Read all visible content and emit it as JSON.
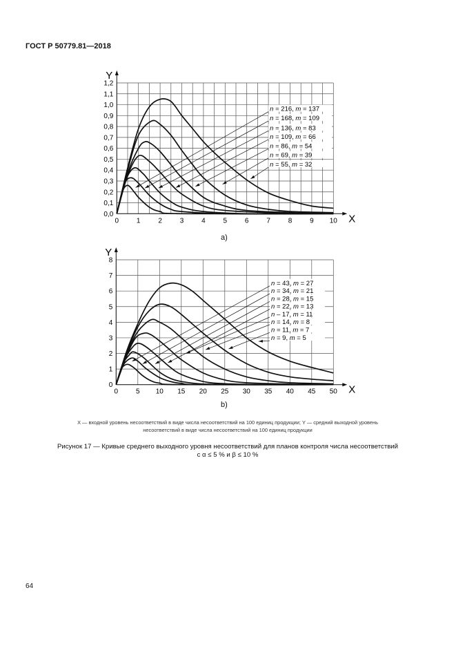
{
  "header": {
    "standard": "ГОСТ Р 50779.81—2018"
  },
  "figure": {
    "legend_line1": "X — входной уровень несоответствий в виде числа несоответствий на 100 единиц продукции; Y — средний выходной уровень",
    "legend_line2": "несоответствий в виде числа несоответствий на 100 единиц продукции",
    "title_line1": "Рисунок 17 — Кривые среднего выходного уровня несоответствий для планов контроля числа несоответствий",
    "title_line2": "с α ≤ 5 % и β ≤ 10 %"
  },
  "page_number": "64",
  "chart_data": [
    {
      "type": "line",
      "sublabel": "a)",
      "xlabel": "X",
      "ylabel": "Y",
      "xlim": [
        0,
        10
      ],
      "ylim": [
        0,
        1.2
      ],
      "xticks": [
        "0",
        "1",
        "2",
        "3",
        "4",
        "5",
        "6",
        "7",
        "8",
        "9",
        "10"
      ],
      "yticks": [
        "0,0",
        "0,1",
        "0,2",
        "0,3",
        "0,4",
        "0,5",
        "0,6",
        "0,7",
        "0,8",
        "0,9",
        "1,0",
        "1,1",
        "1,2"
      ],
      "grid": true,
      "line_color": "#111111",
      "series": [
        {
          "name": "n = 216, m = 137",
          "x": [
            0,
            0.5,
            1,
            1.5,
            2,
            2.5,
            3,
            3.5,
            4,
            4.5,
            5,
            6,
            7,
            8,
            9,
            10
          ],
          "y": [
            0,
            0.42,
            0.78,
            0.98,
            1.05,
            1.03,
            0.9,
            0.78,
            0.66,
            0.56,
            0.47,
            0.31,
            0.19,
            0.12,
            0.07,
            0.05
          ]
        },
        {
          "name": "n = 168, m = 109",
          "x": [
            0,
            0.5,
            1,
            1.6,
            2,
            2.5,
            3,
            3.5,
            4,
            5,
            6,
            7,
            8,
            10
          ],
          "y": [
            0,
            0.4,
            0.72,
            0.85,
            0.82,
            0.72,
            0.58,
            0.45,
            0.33,
            0.17,
            0.08,
            0.04,
            0.02,
            0.01
          ]
        },
        {
          "name": "n = 136, m = 83",
          "x": [
            0,
            0.5,
            1,
            1.3,
            1.6,
            2,
            2.5,
            3,
            4,
            5,
            6,
            8,
            10
          ],
          "y": [
            0,
            0.37,
            0.6,
            0.66,
            0.64,
            0.57,
            0.45,
            0.33,
            0.15,
            0.07,
            0.03,
            0.01,
            0
          ]
        },
        {
          "name": "n = 109, m = 66",
          "x": [
            0,
            0.5,
            1,
            1.5,
            2,
            2.5,
            3,
            4,
            5,
            7,
            10
          ],
          "y": [
            0,
            0.35,
            0.53,
            0.48,
            0.38,
            0.27,
            0.18,
            0.07,
            0.03,
            0.01,
            0
          ]
        },
        {
          "name": "n = 86, m = 54",
          "x": [
            0,
            0.4,
            0.8,
            1.2,
            1.5,
            2,
            2.5,
            3,
            4,
            6,
            10
          ],
          "y": [
            0,
            0.3,
            0.42,
            0.37,
            0.3,
            0.19,
            0.11,
            0.06,
            0.02,
            0,
            0
          ]
        },
        {
          "name": "n = 69, m = 39",
          "x": [
            0,
            0.35,
            0.65,
            1,
            1.5,
            2,
            2.5,
            3,
            5,
            10
          ],
          "y": [
            0,
            0.27,
            0.33,
            0.28,
            0.17,
            0.09,
            0.04,
            0.02,
            0,
            0
          ]
        },
        {
          "name": "n = 55, m = 32",
          "x": [
            0,
            0.25,
            0.5,
            0.8,
            1,
            1.5,
            2,
            3,
            10
          ],
          "y": [
            0,
            0.2,
            0.26,
            0.2,
            0.15,
            0.06,
            0.02,
            0,
            0
          ]
        }
      ]
    },
    {
      "type": "line",
      "sublabel": "b)",
      "xlabel": "X",
      "ylabel": "Y",
      "xlim": [
        0,
        50
      ],
      "ylim": [
        0,
        8
      ],
      "xticks": [
        "0",
        "5",
        "10",
        "15",
        "20",
        "25",
        "30",
        "35",
        "40",
        "45",
        "50"
      ],
      "yticks": [
        "0",
        "1",
        "2",
        "3",
        "4",
        "5",
        "6",
        "7",
        "8"
      ],
      "grid": true,
      "line_color": "#111111",
      "series": [
        {
          "name": "n = 43, m = 27",
          "x": [
            0,
            2.5,
            5,
            7.5,
            10,
            12.5,
            15,
            17.5,
            20,
            22.5,
            25,
            30,
            35,
            40,
            45,
            50
          ],
          "y": [
            0,
            2.2,
            3.9,
            5.3,
            6.2,
            6.5,
            6.4,
            6.0,
            5.4,
            4.8,
            4.2,
            3.0,
            2.1,
            1.5,
            1.1,
            0.75
          ]
        },
        {
          "name": "n = 34, m = 21",
          "x": [
            0,
            2.5,
            5,
            7.5,
            10,
            12.5,
            15,
            20,
            25,
            30,
            35,
            40,
            45,
            50
          ],
          "y": [
            0,
            2.1,
            3.7,
            4.7,
            5.15,
            5.0,
            4.5,
            3.3,
            2.2,
            1.35,
            0.8,
            0.5,
            0.35,
            0.25
          ]
        },
        {
          "name": "n = 28, m = 15",
          "x": [
            0,
            2.5,
            5,
            8,
            10,
            12.5,
            15,
            20,
            25,
            30,
            35,
            40,
            50
          ],
          "y": [
            0,
            2.0,
            3.4,
            4.15,
            4.0,
            3.6,
            3.0,
            1.8,
            1.0,
            0.5,
            0.25,
            0.12,
            0.05
          ]
        },
        {
          "name": "n = 22, m = 13",
          "x": [
            0,
            2.5,
            4.5,
            6.5,
            8,
            10,
            12.5,
            15,
            20,
            25,
            30,
            40,
            50
          ],
          "y": [
            0,
            1.9,
            3.0,
            3.3,
            3.2,
            2.8,
            2.2,
            1.6,
            0.75,
            0.3,
            0.12,
            0.03,
            0
          ]
        },
        {
          "name": "n – 17, m = 11",
          "x": [
            0,
            2,
            3.5,
            5,
            7,
            10,
            12.5,
            15,
            20,
            25,
            35,
            50
          ],
          "y": [
            0,
            1.6,
            2.3,
            2.65,
            2.4,
            1.7,
            1.1,
            0.65,
            0.2,
            0.06,
            0,
            0
          ]
        },
        {
          "name": "n = 14, m = 8",
          "x": [
            0,
            1.5,
            3,
            4,
            6,
            8,
            10,
            12.5,
            15,
            20,
            30,
            50
          ],
          "y": [
            0,
            1.3,
            1.9,
            2.1,
            1.8,
            1.3,
            0.8,
            0.4,
            0.2,
            0.04,
            0,
            0
          ]
        },
        {
          "name": "n = 11, m = 7",
          "x": [
            0,
            1.5,
            3.5,
            5,
            7,
            10,
            12.5,
            15,
            20,
            50
          ],
          "y": [
            0,
            1.2,
            1.7,
            1.5,
            1.0,
            0.45,
            0.2,
            0.08,
            0,
            0
          ]
        },
        {
          "name": "n = 9, m = 5",
          "x": [
            0,
            1.2,
            2.5,
            4,
            6,
            8,
            10,
            15,
            50
          ],
          "y": [
            0,
            1.0,
            1.3,
            1.1,
            0.6,
            0.25,
            0.1,
            0,
            0
          ]
        }
      ]
    }
  ]
}
